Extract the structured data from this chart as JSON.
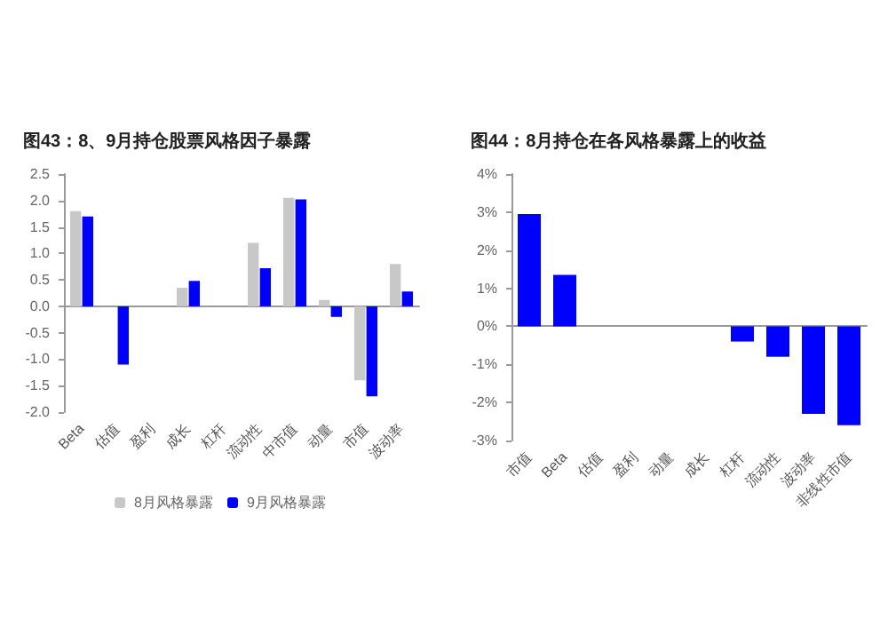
{
  "chart_data": [
    {
      "type": "bar",
      "title": "图43：8、9月持仓股票风格因子暴露",
      "categories": [
        "Beta",
        "估值",
        "盈利",
        "成长",
        "杠杆",
        "流动性",
        "中市值",
        "动量",
        "市值",
        "波动率"
      ],
      "series": [
        {
          "name": "8月风格暴露",
          "color": "#c8c8c8",
          "values": [
            1.8,
            null,
            null,
            0.35,
            null,
            1.2,
            2.05,
            0.12,
            -1.4,
            0.8
          ]
        },
        {
          "name": "9月风格暴露",
          "color": "#0000ff",
          "values": [
            1.7,
            -1.1,
            null,
            0.48,
            null,
            0.72,
            2.02,
            -0.2,
            -1.7,
            0.28
          ]
        }
      ],
      "ylim": [
        -2,
        2.5
      ],
      "yticks": [
        {
          "value": -2,
          "label": "-2.0"
        },
        {
          "value": -1.5,
          "label": "-1.5"
        },
        {
          "value": -1,
          "label": "-1.0"
        },
        {
          "value": -0.5,
          "label": "-0.5"
        },
        {
          "value": 0,
          "label": "0.0"
        },
        {
          "value": 0.5,
          "label": "0.5"
        },
        {
          "value": 1,
          "label": "1.0"
        },
        {
          "value": 1.5,
          "label": "1.5"
        },
        {
          "value": 2,
          "label": "2.0"
        },
        {
          "value": 2.5,
          "label": "2.5"
        }
      ],
      "legend": "bottom"
    },
    {
      "type": "bar",
      "title": "图44：8月持仓在各风格暴露上的收益",
      "categories": [
        "市值",
        "Beta",
        "估值",
        "盈利",
        "动量",
        "成长",
        "杠杆",
        "流动性",
        "波动率",
        "非线性市值"
      ],
      "series": [
        {
          "color": "#0000ff",
          "values": [
            2.95,
            1.35,
            null,
            null,
            null,
            null,
            -0.4,
            -0.8,
            -2.3,
            -2.6
          ]
        }
      ],
      "ylim": [
        -3,
        4
      ],
      "yticks": [
        {
          "value": -3,
          "label": "-3%"
        },
        {
          "value": -2,
          "label": "-2%"
        },
        {
          "value": -1,
          "label": "-1%"
        },
        {
          "value": 0,
          "label": "0%"
        },
        {
          "value": 1,
          "label": "1%"
        },
        {
          "value": 2,
          "label": "2%"
        },
        {
          "value": 3,
          "label": "3%"
        },
        {
          "value": 4,
          "label": "4%"
        }
      ],
      "legend": false
    }
  ]
}
